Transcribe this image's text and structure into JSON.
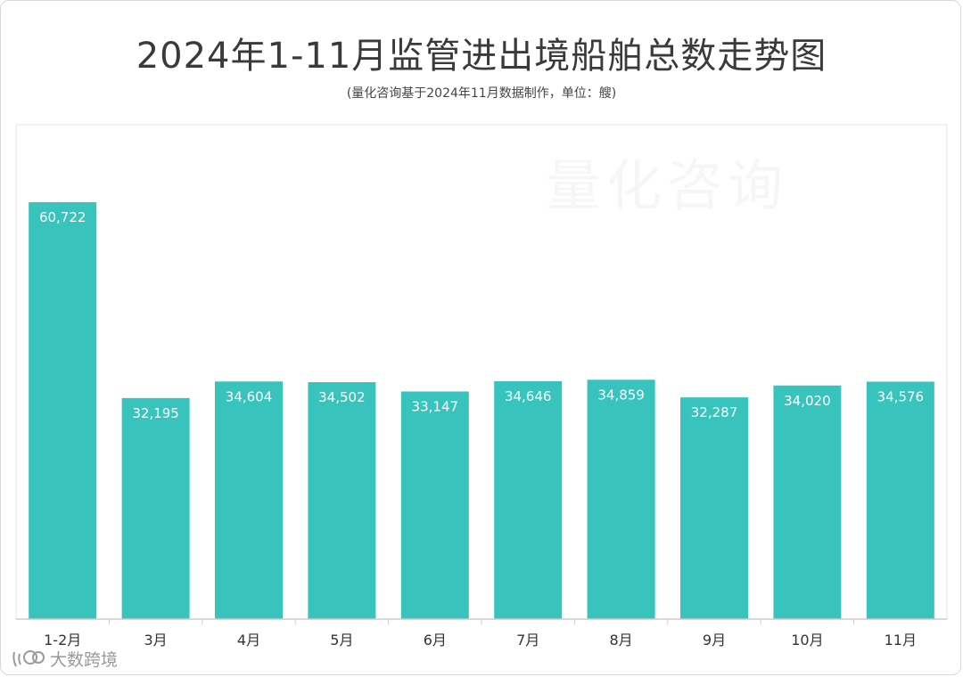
{
  "chart_data": {
    "type": "bar",
    "title": "2024年1-11月监管进出境船舶总数走势图",
    "subtitle": "(量化咨询基于2024年11月数据制作，单位：艘)",
    "categories": [
      "1-2月",
      "3月",
      "4月",
      "5月",
      "6月",
      "7月",
      "8月",
      "9月",
      "10月",
      "11月"
    ],
    "values": [
      60722,
      32195,
      34604,
      34502,
      33147,
      34646,
      34859,
      32287,
      34020,
      34576
    ],
    "value_labels": [
      "60,722",
      "32,195",
      "34,604",
      "34,502",
      "33,147",
      "34,646",
      "34,859",
      "32,287",
      "34,020",
      "34,576"
    ],
    "ylim": [
      0,
      72000
    ],
    "grid": false,
    "bar_color": "#38C4BC",
    "axis_color": "#cccccc"
  },
  "watermark": "量化咨询",
  "brand": {
    "name": "大数跨境",
    "icon": "chat-bubble-logo-icon"
  }
}
